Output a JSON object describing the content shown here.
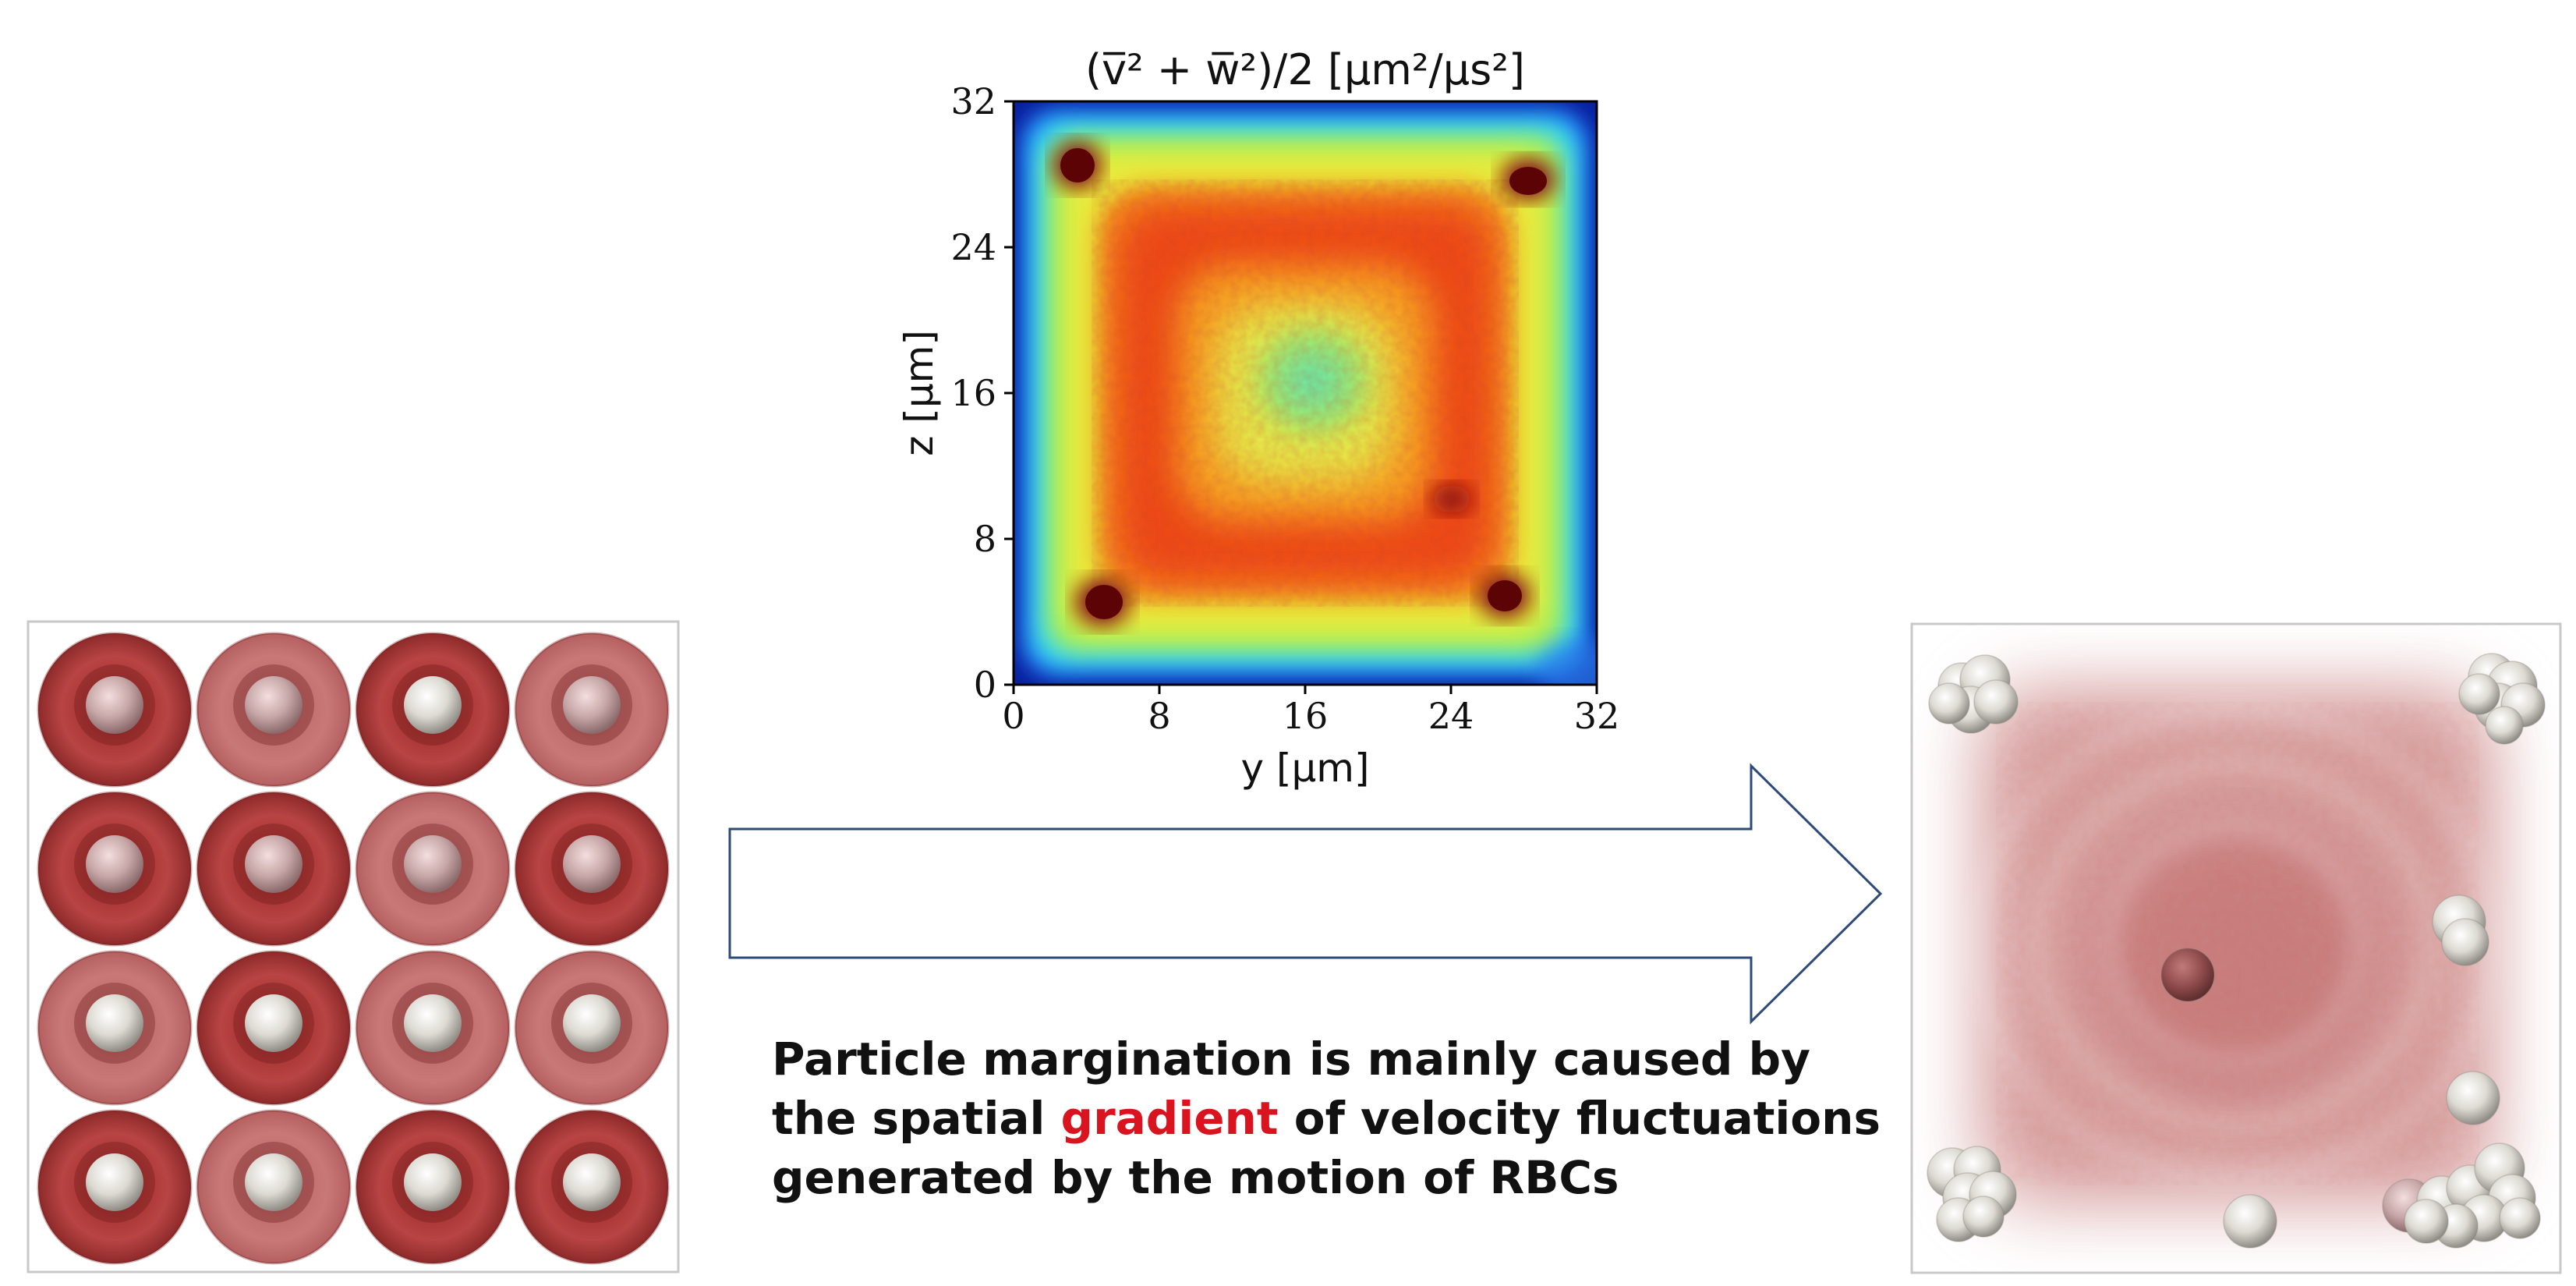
{
  "heatmap": {
    "title": "(v̅² + w̅²)/2 [μm²/μs²]",
    "xlabel": "y [μm]",
    "ylabel": "z [μm]",
    "xticks": [
      "0",
      "8",
      "16",
      "24",
      "32"
    ],
    "yticks": [
      "0",
      "8",
      "16",
      "24",
      "32"
    ]
  },
  "chart_data": {
    "type": "heatmap",
    "title": "(v̅² + w̅²)/2 [μm²/μs²]",
    "xlabel": "y [μm]",
    "ylabel": "z [μm]",
    "xlim": [
      0,
      32
    ],
    "ylim": [
      0,
      32
    ],
    "colormap": "jet",
    "tick_values": [
      0,
      8,
      16,
      24,
      32
    ]
  },
  "caption": {
    "line1": "Particle margination is mainly caused by",
    "line2_before": "the spatial ",
    "line2_highlight": "gradient",
    "line2_after": " of velocity fluctuations",
    "line3": "generated by the motion of RBCs"
  },
  "colors": {
    "arrow_stroke": "#2e4a7a",
    "highlight": "#d9141e",
    "rbc": "#b84646",
    "particle": "#e8e6e0",
    "panel_border": "#c8c8c8"
  }
}
